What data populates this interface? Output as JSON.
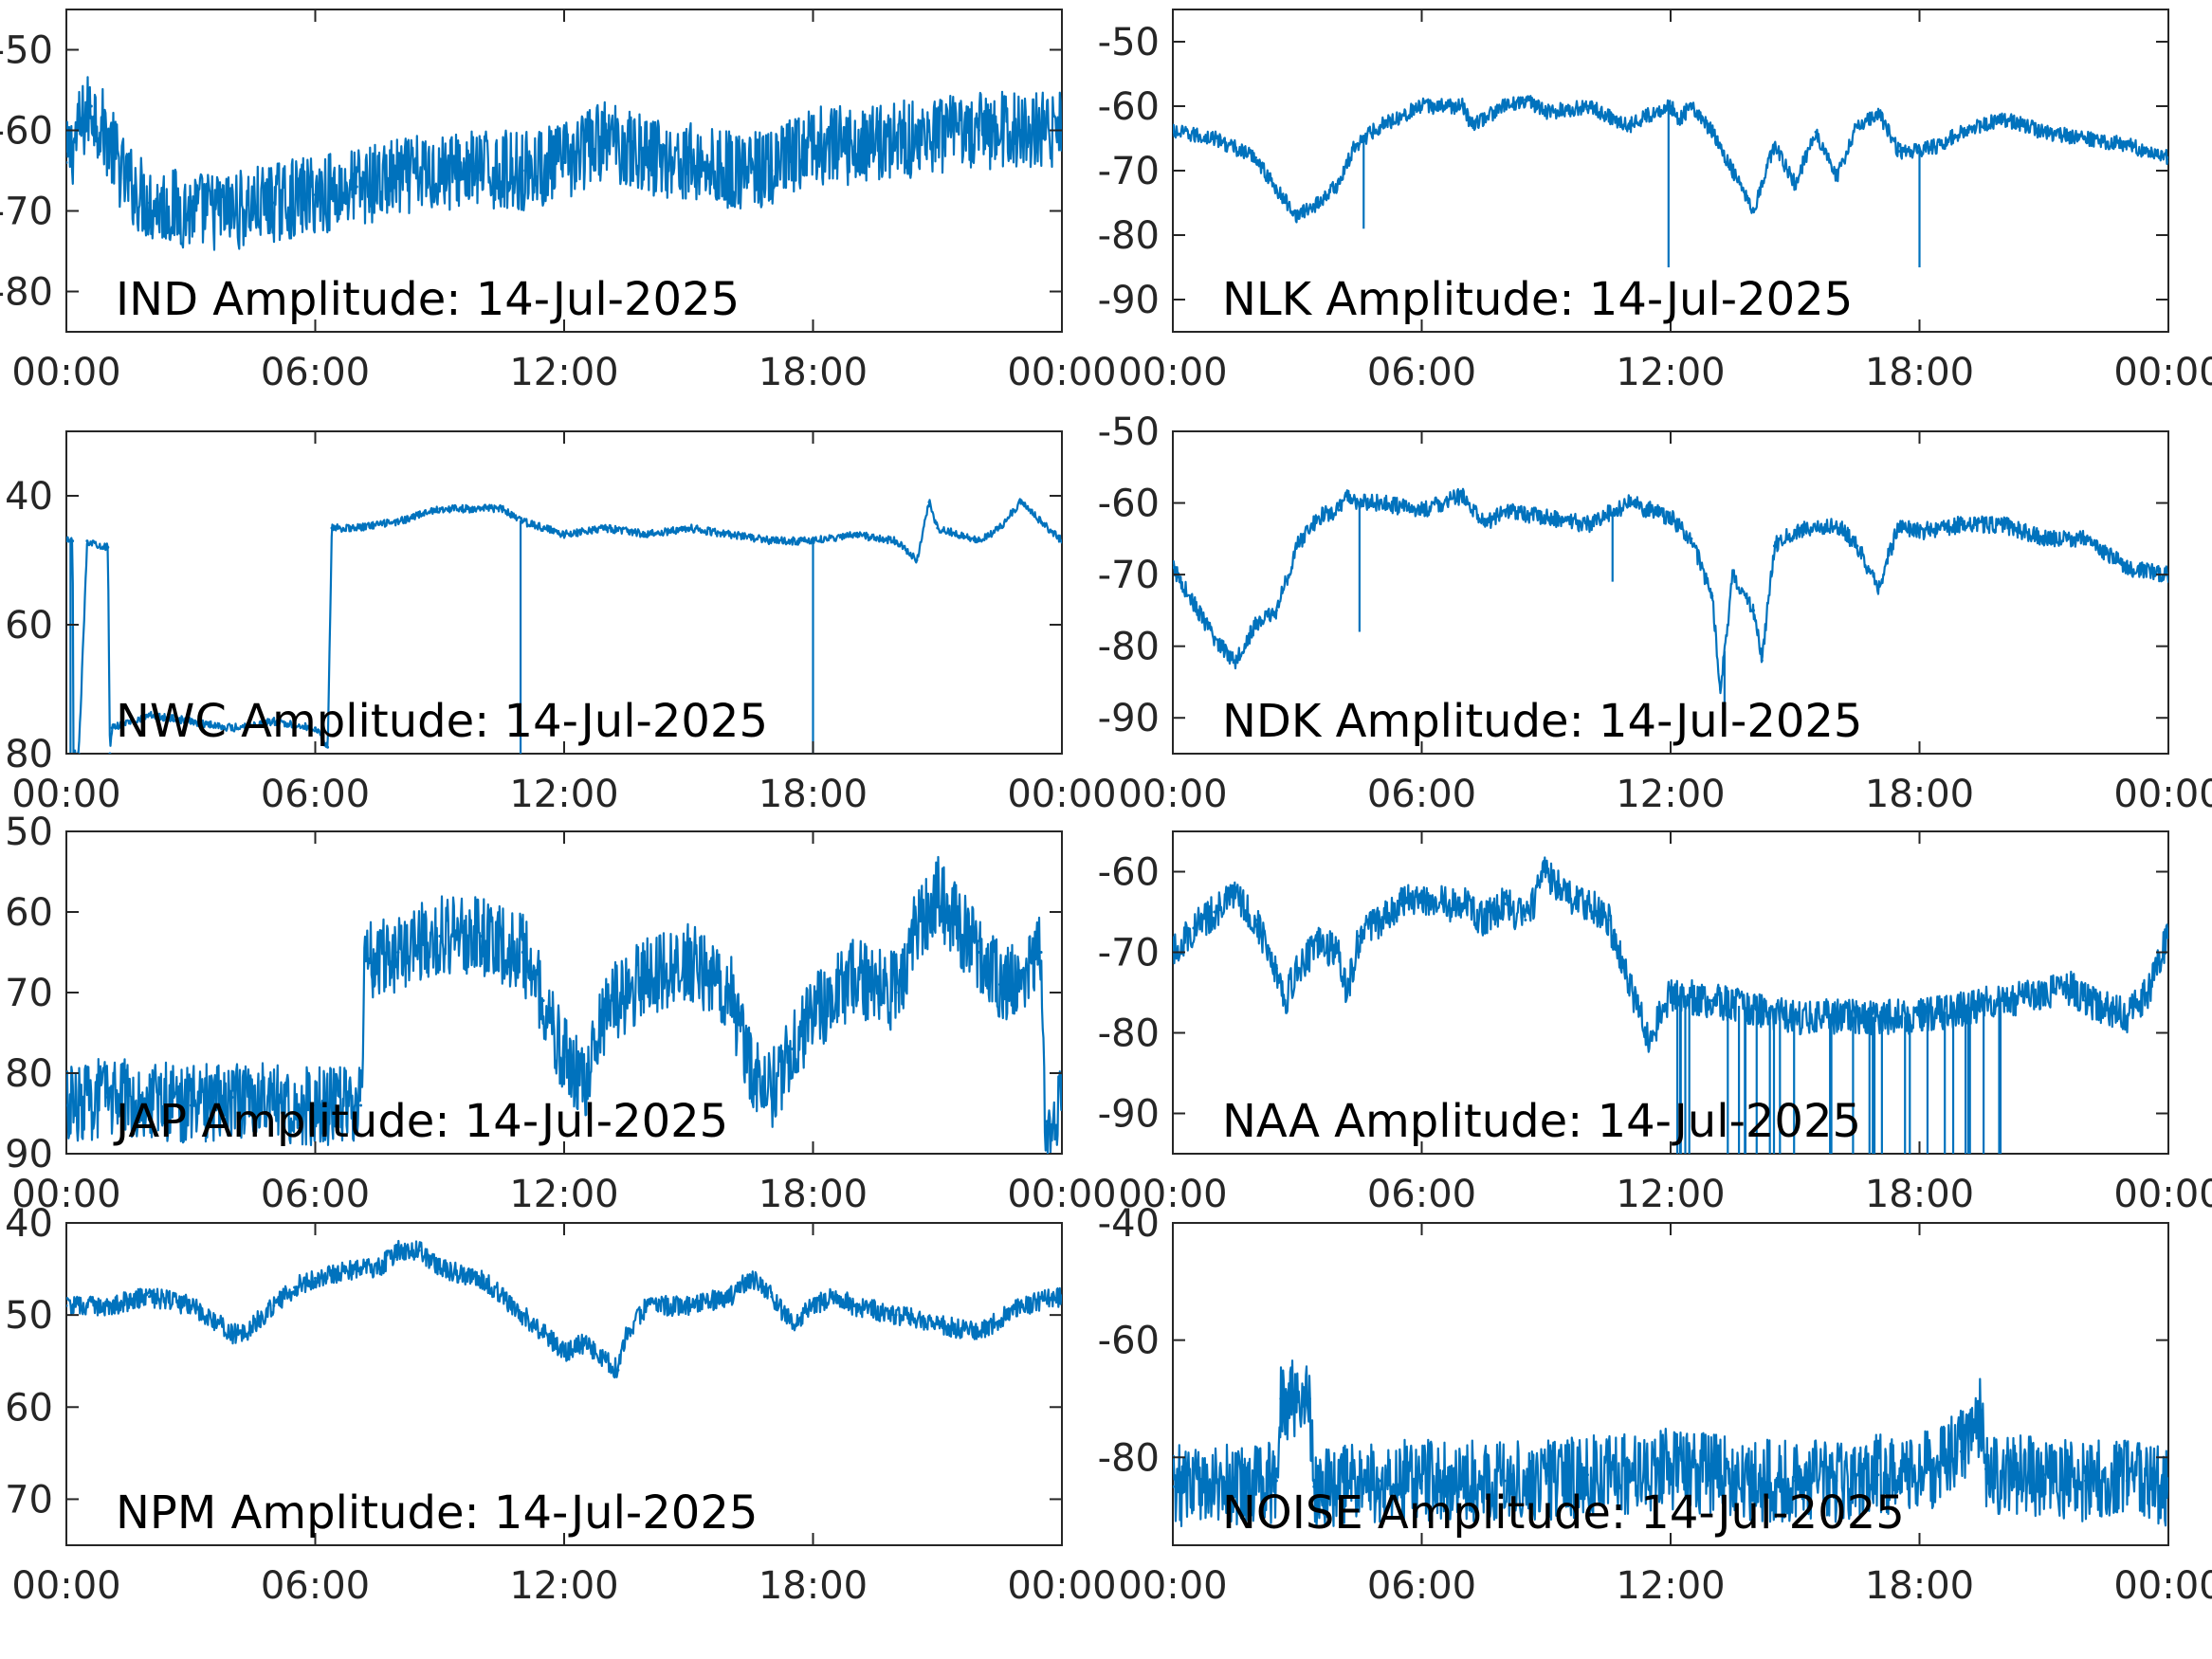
{
  "figure": {
    "line_color": "#0072BD",
    "axis_color": "#262626",
    "background": "#ffffff"
  },
  "chart_data": [
    {
      "type": "line",
      "title": "IND Amplitude: 14-Jul-2025",
      "xlabel": "",
      "ylabel": "",
      "xlim": [
        "00:00",
        "24:00"
      ],
      "ylim": [
        -85,
        -45
      ],
      "y_visible_window": [
        -85,
        -45
      ],
      "xticks": [
        "00:00",
        "06:00",
        "12:00",
        "18:00",
        "00:00"
      ],
      "yticks": [
        -50,
        -60,
        -70,
        -80
      ],
      "ytick_labels": [
        "-50",
        "-60",
        "-70",
        "-80"
      ],
      "grid": false,
      "noise": 5,
      "series": [
        {
          "x": [
            0,
            0.3,
            0.6,
            1.0,
            1.4,
            2.0,
            3.0,
            4.0,
            5.0,
            6.0,
            7.0,
            8.0,
            9.0,
            10.0,
            11.0,
            12.0,
            13.0,
            14.0,
            15.0,
            16.0,
            17.0,
            18.0,
            19.0,
            20.0,
            21.0,
            22.0,
            23.0,
            24.0
          ],
          "y": [
            -64,
            -60,
            -57,
            -61,
            -66,
            -69,
            -70,
            -70,
            -69,
            -68,
            -67,
            -66,
            -65,
            -65,
            -65,
            -64,
            -61,
            -63,
            -64,
            -65,
            -65,
            -62,
            -62,
            -61,
            -61,
            -60,
            -60,
            -60
          ]
        }
      ]
    },
    {
      "type": "line",
      "title": "NLK Amplitude: 14-Jul-2025",
      "xlabel": "",
      "ylabel": "",
      "xlim": [
        "00:00",
        "24:00"
      ],
      "ylim": [
        -95,
        -45
      ],
      "xticks": [
        "00:00",
        "06:00",
        "12:00",
        "18:00",
        "00:00"
      ],
      "yticks": [
        -50,
        -60,
        -70,
        -80,
        -90
      ],
      "ytick_labels": [
        "-50",
        "-60",
        "-70",
        "-80",
        "-90"
      ],
      "grid": false,
      "noise": 1.2,
      "series": [
        {
          "x": [
            0,
            1.0,
            2.0,
            2.5,
            3.0,
            3.5,
            4.0,
            4.4,
            4.6,
            5.0,
            6.0,
            7.0,
            7.2,
            8.0,
            8.5,
            9.0,
            10.0,
            11.0,
            11.9,
            12.0,
            12.2,
            12.5,
            13.0,
            13.5,
            14.0,
            14.5,
            15.0,
            15.5,
            16.0,
            16.5,
            17.0,
            17.5,
            18.0,
            18.5,
            19.0,
            20.0,
            21.0,
            22.0,
            23.0,
            24.0
          ],
          "y": [
            -64,
            -65,
            -68,
            -73,
            -77,
            -75,
            -72,
            -66,
            -65,
            -63,
            -60,
            -60,
            -63,
            -60,
            -59,
            -61,
            -60,
            -63,
            -60,
            -60,
            -62,
            -60,
            -64,
            -70,
            -76,
            -66,
            -72,
            -64,
            -71,
            -63,
            -61,
            -67,
            -67,
            -66,
            -64,
            -62,
            -64,
            -65,
            -66,
            -68
          ]
        }
      ],
      "spikes": [
        [
          4.6,
          -79
        ],
        [
          11.95,
          -85
        ],
        [
          18.0,
          -85
        ]
      ]
    },
    {
      "type": "line",
      "title": "NWC Amplitude: 14-Jul-2025",
      "xlabel": "",
      "ylabel": "",
      "xlim": [
        "00:00",
        "24:00"
      ],
      "ylim": [
        -80,
        -30
      ],
      "xticks": [
        "00:00",
        "06:00",
        "12:00",
        "18:00",
        "00:00"
      ],
      "yticks": [
        -40,
        -60,
        -80
      ],
      "ytick_labels": [
        "40",
        "60",
        "80"
      ],
      "grid": false,
      "noise": 0.6,
      "series": [
        {
          "x": [
            0,
            0.15,
            0.17,
            0.3,
            0.5,
            1.0,
            1.05,
            1.1,
            2.0,
            3.0,
            4.0,
            5.0,
            6.0,
            6.3,
            6.4,
            7.0,
            8.0,
            9.0,
            10.0,
            10.5,
            11.0,
            12.0,
            13.0,
            14.0,
            15.0,
            16.0,
            17.0,
            18.0,
            19.0,
            20.0,
            20.5,
            20.8,
            21.0,
            22.0,
            22.5,
            23.0,
            23.5,
            24.0
          ],
          "y": [
            -47,
            -47,
            -80,
            -80,
            -47,
            -48,
            -80,
            -76,
            -74,
            -75,
            -76,
            -75,
            -76,
            -79,
            -45,
            -45,
            -44,
            -42,
            -42,
            -42,
            -44,
            -46,
            -45,
            -46,
            -45,
            -46,
            -47,
            -47,
            -46,
            -47,
            -50,
            -41,
            -45,
            -47,
            -45,
            -41,
            -44,
            -47
          ]
        }
      ],
      "spikes": [
        [
          0.1,
          -80
        ],
        [
          10.95,
          -80
        ],
        [
          18.0,
          -80
        ]
      ]
    },
    {
      "type": "line",
      "title": "NDK Amplitude: 14-Jul-2025",
      "xlabel": "",
      "ylabel": "",
      "xlim": [
        "00:00",
        "24:00"
      ],
      "ylim": [
        -95,
        -50
      ],
      "xticks": [
        "00:00",
        "06:00",
        "12:00",
        "18:00",
        "00:00"
      ],
      "yticks": [
        -50,
        -60,
        -70,
        -80,
        -90
      ],
      "ytick_labels": [
        "-50",
        "-60",
        "-70",
        "-80",
        "-90"
      ],
      "grid": false,
      "noise": 1.2,
      "series": [
        {
          "x": [
            0,
            0.5,
            1.0,
            1.5,
            2.0,
            2.5,
            3.0,
            3.5,
            4.0,
            4.2,
            4.5,
            5.0,
            6.0,
            7.0,
            7.5,
            8.0,
            9.0,
            10.0,
            11.0,
            11.5,
            12.0,
            12.5,
            13.0,
            13.2,
            13.5,
            14.0,
            14.2,
            14.5,
            15.0,
            16.0,
            16.5,
            17.0,
            17.5,
            18.0,
            19.0,
            20.0,
            21.0,
            22.0,
            23.0,
            24.0
          ],
          "y": [
            -69,
            -74,
            -79,
            -82,
            -77,
            -75,
            -66,
            -62,
            -61,
            -59,
            -60,
            -60,
            -61,
            -59,
            -63,
            -61,
            -62,
            -63,
            -60,
            -61,
            -62,
            -65,
            -73,
            -86,
            -70,
            -75,
            -82,
            -66,
            -64,
            -63,
            -66,
            -72,
            -63,
            -64,
            -63,
            -63,
            -65,
            -65,
            -69,
            -70
          ]
        }
      ],
      "spikes": [
        [
          4.5,
          -78
        ],
        [
          10.6,
          -71
        ],
        [
          13.3,
          -89
        ]
      ]
    },
    {
      "type": "line",
      "title": "JAP Amplitude: 14-Jul-2025",
      "xlabel": "",
      "ylabel": "",
      "xlim": [
        "00:00",
        "24:00"
      ],
      "ylim": [
        -90,
        -50
      ],
      "xticks": [
        "00:00",
        "06:00",
        "12:00",
        "18:00",
        "00:00"
      ],
      "yticks": [
        -50,
        -60,
        -70,
        -80,
        -90
      ],
      "ytick_labels": [
        "50",
        "60",
        "70",
        "80",
        "90"
      ],
      "grid": false,
      "noise": 5,
      "series": [
        {
          "x": [
            0,
            1.0,
            2.0,
            3.0,
            4.0,
            5.0,
            6.0,
            7.1,
            7.2,
            8.0,
            9.0,
            10.0,
            11.0,
            11.5,
            12.0,
            12.5,
            13.0,
            13.5,
            14.0,
            15.0,
            16.0,
            16.5,
            17.0,
            17.5,
            18.0,
            19.0,
            20.0,
            20.5,
            21.0,
            22.0,
            22.5,
            23.0,
            23.5,
            23.6,
            24.0
          ],
          "y": [
            -84,
            -83,
            -83,
            -84,
            -83,
            -84,
            -84,
            -84,
            -66,
            -65,
            -63,
            -63,
            -65,
            -71,
            -78,
            -82,
            -72,
            -70,
            -68,
            -66,
            -70,
            -80,
            -82,
            -77,
            -73,
            -68,
            -70,
            -62,
            -58,
            -65,
            -69,
            -68,
            -65,
            -86,
            -84
          ]
        }
      ]
    },
    {
      "type": "line",
      "title": "NAA Amplitude: 14-Jul-2025",
      "xlabel": "",
      "ylabel": "",
      "xlim": [
        "00:00",
        "24:00"
      ],
      "ylim": [
        -95,
        -55
      ],
      "xticks": [
        "00:00",
        "06:00",
        "12:00",
        "18:00",
        "00:00"
      ],
      "yticks": [
        -60,
        -70,
        -80,
        -90
      ],
      "ytick_labels": [
        "-60",
        "-70",
        "-80",
        "-90"
      ],
      "grid": false,
      "noise": 2.2,
      "series": [
        {
          "x": [
            0,
            0.5,
            1.0,
            1.5,
            2.0,
            2.5,
            2.7,
            3.0,
            3.5,
            4.0,
            4.2,
            4.5,
            5.0,
            5.5,
            6.0,
            6.5,
            7.0,
            7.5,
            8.0,
            8.5,
            9.0,
            9.5,
            10.0,
            10.5,
            11.0,
            11.5,
            12.0,
            13.0,
            14.0,
            15.0,
            16.0,
            17.0,
            18.0,
            19.0,
            20.0,
            21.0,
            21.5,
            22.0,
            23.0,
            23.5,
            24.0
          ],
          "y": [
            -70,
            -67,
            -65,
            -63,
            -66,
            -72,
            -76,
            -72,
            -69,
            -70,
            -75,
            -68,
            -66,
            -64,
            -63,
            -64,
            -64,
            -66,
            -64,
            -66,
            -60,
            -63,
            -64,
            -66,
            -74,
            -81,
            -75,
            -76,
            -77,
            -78,
            -78,
            -78,
            -78,
            -77,
            -76,
            -75,
            -74,
            -76,
            -78,
            -75,
            -68
          ]
        }
      ],
      "dropouts": {
        "start": 12.0,
        "end": 20.0,
        "count": 32,
        "floor": -95
      }
    },
    {
      "type": "line",
      "title": "NPM Amplitude: 14-Jul-2025",
      "xlabel": "",
      "ylabel": "",
      "xlim": [
        "00:00",
        "24:00"
      ],
      "ylim": [
        -75,
        -40
      ],
      "xticks": [
        "00:00",
        "06:00",
        "12:00",
        "18:00",
        "00:00"
      ],
      "yticks": [
        -40,
        -50,
        -60,
        -70
      ],
      "ytick_labels": [
        "40",
        "50",
        "60",
        "70"
      ],
      "grid": false,
      "noise": 1.1,
      "series": [
        {
          "x": [
            0,
            1.0,
            2.0,
            3.0,
            4.0,
            4.3,
            5.0,
            5.5,
            6.0,
            7.0,
            7.5,
            8.0,
            8.5,
            9.0,
            10.0,
            11.0,
            11.5,
            12.0,
            12.5,
            13.0,
            13.3,
            13.5,
            14.0,
            15.0,
            16.0,
            16.5,
            17.0,
            17.5,
            18.0,
            18.5,
            19.0,
            20.0,
            21.0,
            22.0,
            23.0,
            24.0
          ],
          "y": [
            -49,
            -49,
            -48,
            -49,
            -52,
            -52,
            -49,
            -47,
            -46,
            -45,
            -45,
            -43,
            -43,
            -45,
            -46,
            -50,
            -52,
            -54,
            -53,
            -55,
            -56,
            -52,
            -49,
            -49,
            -48,
            -46,
            -48,
            -51,
            -49,
            -48,
            -49,
            -50,
            -51,
            -52,
            -49,
            -48
          ]
        }
      ]
    },
    {
      "type": "line",
      "title": "NOISE Amplitude: 14-Jul-2025",
      "xlabel": "",
      "ylabel": "",
      "xlim": [
        "00:00",
        "24:00"
      ],
      "ylim": [
        -95,
        -40
      ],
      "xticks": [
        "00:00",
        "06:00",
        "12:00",
        "18:00",
        "00:00"
      ],
      "yticks": [
        -40,
        -60,
        -80
      ],
      "ytick_labels": [
        "-40",
        "-60",
        "-80"
      ],
      "grid": false,
      "noise": 7,
      "series": [
        {
          "x": [
            0,
            1.0,
            2.0,
            2.5,
            2.6,
            3.0,
            3.3,
            3.4,
            4.0,
            5.0,
            6.0,
            7.0,
            8.0,
            9.0,
            10.0,
            11.0,
            12.0,
            13.0,
            14.0,
            15.0,
            16.0,
            17.0,
            18.0,
            19.0,
            19.5,
            19.6,
            20.0,
            21.0,
            22.0,
            23.0,
            24.0
          ],
          "y": [
            -85,
            -84,
            -85,
            -84,
            -70,
            -70,
            -70,
            -85,
            -85,
            -84,
            -84,
            -84,
            -84,
            -84,
            -83,
            -83,
            -82,
            -83,
            -84,
            -84,
            -84,
            -83,
            -83,
            -79,
            -72,
            -82,
            -83,
            -83,
            -84,
            -84,
            -85
          ]
        }
      ]
    }
  ]
}
